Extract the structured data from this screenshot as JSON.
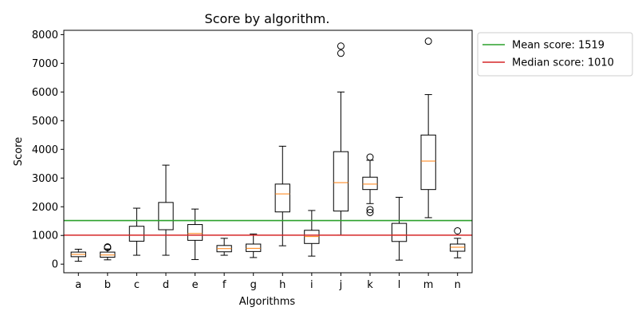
{
  "chart_data": {
    "type": "box",
    "title": "Score by algorithm.",
    "xlabel": "Algorithms",
    "ylabel": "Score",
    "ylim": [
      -300,
      8150
    ],
    "yticks": [
      0,
      1000,
      2000,
      3000,
      4000,
      5000,
      6000,
      7000,
      8000
    ],
    "grid": false,
    "legend_position": "outside-top-right",
    "categories": [
      "a",
      "b",
      "c",
      "d",
      "e",
      "f",
      "g",
      "h",
      "i",
      "j",
      "k",
      "l",
      "m",
      "n"
    ],
    "boxes": [
      {
        "category": "a",
        "whisker_low": 100,
        "q1": 260,
        "median": 340,
        "q3": 420,
        "whisker_high": 520,
        "outliers": []
      },
      {
        "category": "b",
        "whisker_low": 150,
        "q1": 240,
        "median": 320,
        "q3": 420,
        "whisker_high": 530,
        "outliers": [
          600,
          580
        ]
      },
      {
        "category": "c",
        "whisker_low": 310,
        "q1": 800,
        "median": 1010,
        "q3": 1320,
        "whisker_high": 1950,
        "outliers": []
      },
      {
        "category": "d",
        "whisker_low": 310,
        "q1": 1200,
        "median": 1520,
        "q3": 2150,
        "whisker_high": 3450,
        "outliers": []
      },
      {
        "category": "e",
        "whisker_low": 160,
        "q1": 830,
        "median": 1070,
        "q3": 1380,
        "whisker_high": 1920,
        "outliers": []
      },
      {
        "category": "f",
        "whisker_low": 310,
        "q1": 430,
        "median": 540,
        "q3": 650,
        "whisker_high": 900,
        "outliers": []
      },
      {
        "category": "g",
        "whisker_low": 230,
        "q1": 440,
        "median": 550,
        "q3": 700,
        "whisker_high": 1050,
        "outliers": []
      },
      {
        "category": "h",
        "whisker_low": 640,
        "q1": 1820,
        "median": 2450,
        "q3": 2790,
        "whisker_high": 4110,
        "outliers": []
      },
      {
        "category": "i",
        "whisker_low": 280,
        "q1": 720,
        "median": 960,
        "q3": 1180,
        "whisker_high": 1870,
        "outliers": []
      },
      {
        "category": "j",
        "whisker_low": 1010,
        "q1": 1850,
        "median": 2840,
        "q3": 3920,
        "whisker_high": 6000,
        "outliers": [
          7350,
          7600
        ]
      },
      {
        "category": "k",
        "whisker_low": 2110,
        "q1": 2600,
        "median": 2790,
        "q3": 3030,
        "whisker_high": 3620,
        "outliers": [
          3730,
          1900,
          1800
        ]
      },
      {
        "category": "l",
        "whisker_low": 140,
        "q1": 790,
        "median": 1020,
        "q3": 1420,
        "whisker_high": 2330,
        "outliers": []
      },
      {
        "category": "m",
        "whisker_low": 1620,
        "q1": 2600,
        "median": 3590,
        "q3": 4500,
        "whisker_high": 5910,
        "outliers": [
          7770
        ]
      },
      {
        "category": "n",
        "whisker_low": 220,
        "q1": 450,
        "median": 590,
        "q3": 700,
        "whisker_high": 900,
        "outliers": [
          1160
        ]
      }
    ],
    "reference_lines": [
      {
        "name": "Mean score: 1519",
        "value": 1519,
        "color": "#2ca02c"
      },
      {
        "name": "Median score: 1010",
        "value": 1010,
        "color": "#d62728"
      }
    ],
    "colors": {
      "median_line": "#ff7f0e",
      "box": "#000000",
      "axis": "#000000"
    }
  }
}
